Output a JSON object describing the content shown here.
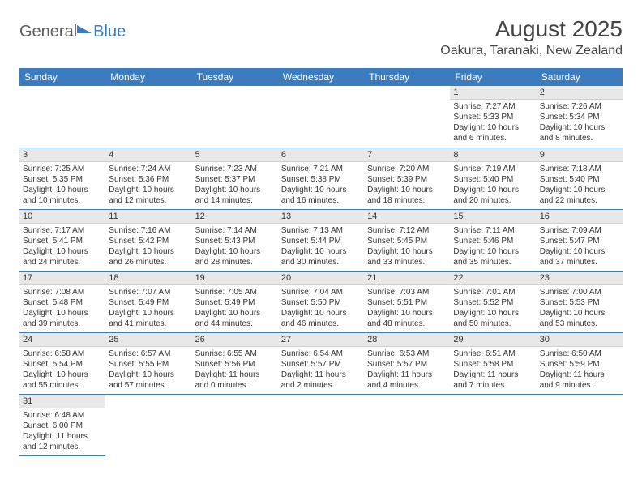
{
  "logo": {
    "general": "General",
    "blue": "Blue"
  },
  "title": "August 2025",
  "subtitle": "Oakura, Taranaki, New Zealand",
  "colors": {
    "header_bg": "#3b7bbf",
    "header_fg": "#ffffff",
    "daynum_bg": "#e8e8e8",
    "border": "#3b7bbf",
    "text": "#333333"
  },
  "columns": [
    "Sunday",
    "Monday",
    "Tuesday",
    "Wednesday",
    "Thursday",
    "Friday",
    "Saturday"
  ],
  "weeks": [
    [
      null,
      null,
      null,
      null,
      null,
      {
        "n": "1",
        "sr": "Sunrise: 7:27 AM",
        "ss": "Sunset: 5:33 PM",
        "dl": "Daylight: 10 hours and 6 minutes."
      },
      {
        "n": "2",
        "sr": "Sunrise: 7:26 AM",
        "ss": "Sunset: 5:34 PM",
        "dl": "Daylight: 10 hours and 8 minutes."
      }
    ],
    [
      {
        "n": "3",
        "sr": "Sunrise: 7:25 AM",
        "ss": "Sunset: 5:35 PM",
        "dl": "Daylight: 10 hours and 10 minutes."
      },
      {
        "n": "4",
        "sr": "Sunrise: 7:24 AM",
        "ss": "Sunset: 5:36 PM",
        "dl": "Daylight: 10 hours and 12 minutes."
      },
      {
        "n": "5",
        "sr": "Sunrise: 7:23 AM",
        "ss": "Sunset: 5:37 PM",
        "dl": "Daylight: 10 hours and 14 minutes."
      },
      {
        "n": "6",
        "sr": "Sunrise: 7:21 AM",
        "ss": "Sunset: 5:38 PM",
        "dl": "Daylight: 10 hours and 16 minutes."
      },
      {
        "n": "7",
        "sr": "Sunrise: 7:20 AM",
        "ss": "Sunset: 5:39 PM",
        "dl": "Daylight: 10 hours and 18 minutes."
      },
      {
        "n": "8",
        "sr": "Sunrise: 7:19 AM",
        "ss": "Sunset: 5:40 PM",
        "dl": "Daylight: 10 hours and 20 minutes."
      },
      {
        "n": "9",
        "sr": "Sunrise: 7:18 AM",
        "ss": "Sunset: 5:40 PM",
        "dl": "Daylight: 10 hours and 22 minutes."
      }
    ],
    [
      {
        "n": "10",
        "sr": "Sunrise: 7:17 AM",
        "ss": "Sunset: 5:41 PM",
        "dl": "Daylight: 10 hours and 24 minutes."
      },
      {
        "n": "11",
        "sr": "Sunrise: 7:16 AM",
        "ss": "Sunset: 5:42 PM",
        "dl": "Daylight: 10 hours and 26 minutes."
      },
      {
        "n": "12",
        "sr": "Sunrise: 7:14 AM",
        "ss": "Sunset: 5:43 PM",
        "dl": "Daylight: 10 hours and 28 minutes."
      },
      {
        "n": "13",
        "sr": "Sunrise: 7:13 AM",
        "ss": "Sunset: 5:44 PM",
        "dl": "Daylight: 10 hours and 30 minutes."
      },
      {
        "n": "14",
        "sr": "Sunrise: 7:12 AM",
        "ss": "Sunset: 5:45 PM",
        "dl": "Daylight: 10 hours and 33 minutes."
      },
      {
        "n": "15",
        "sr": "Sunrise: 7:11 AM",
        "ss": "Sunset: 5:46 PM",
        "dl": "Daylight: 10 hours and 35 minutes."
      },
      {
        "n": "16",
        "sr": "Sunrise: 7:09 AM",
        "ss": "Sunset: 5:47 PM",
        "dl": "Daylight: 10 hours and 37 minutes."
      }
    ],
    [
      {
        "n": "17",
        "sr": "Sunrise: 7:08 AM",
        "ss": "Sunset: 5:48 PM",
        "dl": "Daylight: 10 hours and 39 minutes."
      },
      {
        "n": "18",
        "sr": "Sunrise: 7:07 AM",
        "ss": "Sunset: 5:49 PM",
        "dl": "Daylight: 10 hours and 41 minutes."
      },
      {
        "n": "19",
        "sr": "Sunrise: 7:05 AM",
        "ss": "Sunset: 5:49 PM",
        "dl": "Daylight: 10 hours and 44 minutes."
      },
      {
        "n": "20",
        "sr": "Sunrise: 7:04 AM",
        "ss": "Sunset: 5:50 PM",
        "dl": "Daylight: 10 hours and 46 minutes."
      },
      {
        "n": "21",
        "sr": "Sunrise: 7:03 AM",
        "ss": "Sunset: 5:51 PM",
        "dl": "Daylight: 10 hours and 48 minutes."
      },
      {
        "n": "22",
        "sr": "Sunrise: 7:01 AM",
        "ss": "Sunset: 5:52 PM",
        "dl": "Daylight: 10 hours and 50 minutes."
      },
      {
        "n": "23",
        "sr": "Sunrise: 7:00 AM",
        "ss": "Sunset: 5:53 PM",
        "dl": "Daylight: 10 hours and 53 minutes."
      }
    ],
    [
      {
        "n": "24",
        "sr": "Sunrise: 6:58 AM",
        "ss": "Sunset: 5:54 PM",
        "dl": "Daylight: 10 hours and 55 minutes."
      },
      {
        "n": "25",
        "sr": "Sunrise: 6:57 AM",
        "ss": "Sunset: 5:55 PM",
        "dl": "Daylight: 10 hours and 57 minutes."
      },
      {
        "n": "26",
        "sr": "Sunrise: 6:55 AM",
        "ss": "Sunset: 5:56 PM",
        "dl": "Daylight: 11 hours and 0 minutes."
      },
      {
        "n": "27",
        "sr": "Sunrise: 6:54 AM",
        "ss": "Sunset: 5:57 PM",
        "dl": "Daylight: 11 hours and 2 minutes."
      },
      {
        "n": "28",
        "sr": "Sunrise: 6:53 AM",
        "ss": "Sunset: 5:57 PM",
        "dl": "Daylight: 11 hours and 4 minutes."
      },
      {
        "n": "29",
        "sr": "Sunrise: 6:51 AM",
        "ss": "Sunset: 5:58 PM",
        "dl": "Daylight: 11 hours and 7 minutes."
      },
      {
        "n": "30",
        "sr": "Sunrise: 6:50 AM",
        "ss": "Sunset: 5:59 PM",
        "dl": "Daylight: 11 hours and 9 minutes."
      }
    ],
    [
      {
        "n": "31",
        "sr": "Sunrise: 6:48 AM",
        "ss": "Sunset: 6:00 PM",
        "dl": "Daylight: 11 hours and 12 minutes."
      },
      null,
      null,
      null,
      null,
      null,
      null
    ]
  ]
}
